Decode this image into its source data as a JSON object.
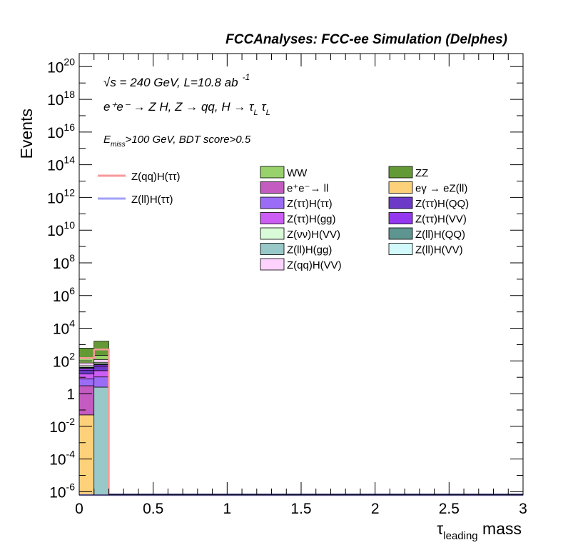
{
  "chart_data": {
    "type": "bar",
    "title": "FCCAnalyses: FCC-ee Simulation (Delphes)",
    "xlabel_main": "τ",
    "xlabel_sub": "leading",
    "xlabel_tail": " mass",
    "ylabel": "Events",
    "xlim": [
      0,
      3
    ],
    "ylim_log10": [
      -6.2,
      20.8
    ],
    "log_y": true,
    "x_ticks": [
      {
        "v": 0,
        "label": "0"
      },
      {
        "v": 0.5,
        "label": "0.5"
      },
      {
        "v": 1,
        "label": "1"
      },
      {
        "v": 1.5,
        "label": "1.5"
      },
      {
        "v": 2,
        "label": "2"
      },
      {
        "v": 2.5,
        "label": "2.5"
      },
      {
        "v": 3,
        "label": "3"
      }
    ],
    "y_ticks": [
      {
        "e": -6,
        "base": "10",
        "exp": "-6"
      },
      {
        "e": -4,
        "base": "10",
        "exp": "-4"
      },
      {
        "e": -2,
        "base": "10",
        "exp": "-2"
      },
      {
        "e": 0,
        "base": "1",
        "exp": ""
      },
      {
        "e": 2,
        "base": "10",
        "exp": "2"
      },
      {
        "e": 4,
        "base": "10",
        "exp": "4"
      },
      {
        "e": 6,
        "base": "10",
        "exp": "6"
      },
      {
        "e": 8,
        "base": "10",
        "exp": "8"
      },
      {
        "e": 10,
        "base": "10",
        "exp": "10"
      },
      {
        "e": 12,
        "base": "10",
        "exp": "12"
      },
      {
        "e": 14,
        "base": "10",
        "exp": "14"
      },
      {
        "e": 16,
        "base": "10",
        "exp": "16"
      },
      {
        "e": 18,
        "base": "10",
        "exp": "18"
      },
      {
        "e": 20,
        "base": "10",
        "exp": "20"
      }
    ],
    "bins": [
      [
        0,
        0.1
      ],
      [
        0.1,
        0.2
      ]
    ],
    "stack_series": [
      {
        "name": "eγ → eZ(ll)",
        "color": "#fdd07a",
        "values": [
          0.05,
          0
        ]
      },
      {
        "name": "Z(ll)H(gg)",
        "color": "#98c8c8",
        "values": [
          0,
          2.5
        ]
      },
      {
        "name": "e⁺e⁻→ ll",
        "color": "#c45bc0",
        "values": [
          3,
          0
        ]
      },
      {
        "name": "Z(ττ)H(ττ)",
        "color": "#9b6cf6",
        "values": [
          5,
          8
        ]
      },
      {
        "name": "Z(ττ)H(gg)",
        "color": "#cd5ef5",
        "values": [
          8,
          15
        ]
      },
      {
        "name": "Z(ττ)H(QQ)",
        "color": "#6c3ac7",
        "values": [
          10,
          20
        ]
      },
      {
        "name": "Z(ττ)H(VV)",
        "color": "#9438f0",
        "values": [
          8,
          12
        ]
      },
      {
        "name": "Z(ll)H(QQ)",
        "color": "#5f9590",
        "values": [
          4,
          6
        ]
      },
      {
        "name": "Z(ll)H(VV)",
        "color": "#d2fafa",
        "values": [
          3,
          4
        ]
      },
      {
        "name": "Z(νν)H(VV)",
        "color": "#d9fbd7",
        "values": [
          10,
          15
        ]
      },
      {
        "name": "Z(qq)H(VV)",
        "color": "#fdd2fc",
        "values": [
          25,
          40
        ]
      },
      {
        "name": "WW",
        "color": "#98d26a",
        "values": [
          80,
          100
        ]
      },
      {
        "name": "ZZ",
        "color": "#649a35",
        "values": [
          450,
          1400
        ]
      }
    ],
    "signal_lines": [
      {
        "name": "Z(qq)H(ττ)",
        "color": "#f89a9a",
        "values": [
          150,
          500
        ]
      },
      {
        "name": "Z(ll)H(ττ)",
        "color": "#a0a0f8",
        "values": [
          0,
          0
        ]
      }
    ],
    "annotations": {
      "sqrt_s": "√s = 240 GeV, L=10.8 ab",
      "lumi_exp": "-1",
      "process": "e⁺e⁻ → Z H, Z → qq, H → τ",
      "process_sub": "L",
      "cuts_E": "E",
      "cuts_sub": "miss",
      "cuts_rest": ">100 GeV, BDT score>0.5"
    },
    "legend_position": "top"
  }
}
